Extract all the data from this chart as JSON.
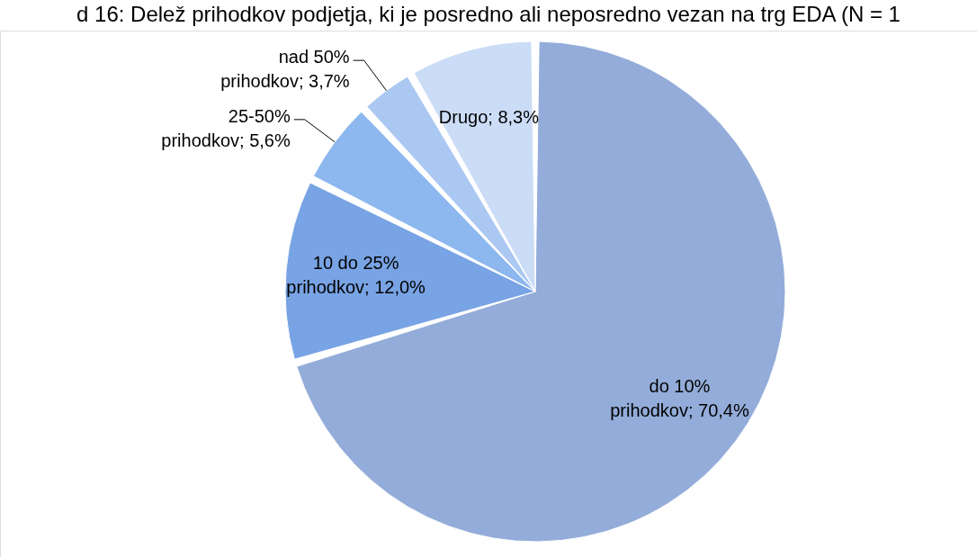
{
  "chart_data": {
    "type": "pie",
    "title": "d 16: Delež prihodkov podjetja, ki je posredno ali neposredno vezan na trg EDA (N = 1",
    "categories": [
      "do 10% prihodkov",
      "10 do 25% prihodkov",
      "25-50% prihodkov",
      "nad 50% prihodkov",
      "Drugo"
    ],
    "values": [
      70.4,
      12.0,
      5.6,
      3.7,
      8.3
    ],
    "value_labels": [
      "70,4%",
      "12,0%",
      "5,6%",
      "3,7%",
      "8,3%"
    ],
    "colors": [
      "#93acd9",
      "#78a3e4",
      "#8db7ef",
      "#abc8f2",
      "#cbdcf6"
    ]
  }
}
